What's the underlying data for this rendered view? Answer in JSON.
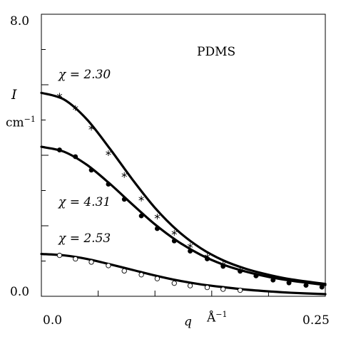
{
  "chart_data": {
    "type": "line",
    "annotation": "PDMS",
    "xlabel_symbol": "q",
    "xlabel_unit": "Å",
    "xlabel_unit_exp": "−1",
    "ylabel_symbol": "I",
    "ylabel_unit": "cm",
    "ylabel_unit_exp": "−1",
    "xlim": [
      0.0,
      0.25
    ],
    "ylim": [
      0.0,
      8.0
    ],
    "x_tick_labels": [
      "0.0",
      "0.25"
    ],
    "y_tick_labels": [
      "8.0",
      "0.0"
    ],
    "grid": false,
    "series": [
      {
        "name": "χ = 2.30",
        "marker": "star",
        "x": [
          0.016,
          0.03,
          0.044,
          0.059,
          0.073,
          0.088,
          0.102,
          0.117,
          0.131,
          0.146,
          0.16,
          0.175,
          0.189,
          0.204,
          0.218,
          0.233,
          0.247
        ],
        "points": [
          5.69,
          5.34,
          4.78,
          4.06,
          3.44,
          2.77,
          2.26,
          1.8,
          1.43,
          1.13,
          0.91,
          0.73,
          0.6,
          0.5,
          0.43,
          0.35,
          0.3
        ],
        "curve_x": [
          0.0,
          0.02,
          0.04,
          0.06,
          0.08,
          0.1,
          0.12,
          0.14,
          0.16,
          0.18,
          0.2,
          0.22,
          0.25
        ],
        "curve": [
          5.77,
          5.58,
          5.02,
          4.2,
          3.32,
          2.51,
          1.86,
          1.37,
          1.02,
          0.78,
          0.61,
          0.48,
          0.35
        ]
      },
      {
        "name": "χ = 4.31",
        "marker": "filled-circle",
        "x": [
          0.016,
          0.03,
          0.044,
          0.059,
          0.073,
          0.088,
          0.102,
          0.117,
          0.131,
          0.146,
          0.16,
          0.175,
          0.189,
          0.204,
          0.218,
          0.233,
          0.247
        ],
        "points": [
          4.15,
          3.96,
          3.58,
          3.18,
          2.75,
          2.28,
          1.92,
          1.57,
          1.28,
          1.06,
          0.85,
          0.71,
          0.58,
          0.46,
          0.38,
          0.31,
          0.26
        ],
        "curve_x": [
          0.0,
          0.02,
          0.04,
          0.06,
          0.08,
          0.1,
          0.12,
          0.14,
          0.16,
          0.18,
          0.2,
          0.22,
          0.25
        ],
        "curve": [
          4.24,
          4.1,
          3.73,
          3.2,
          2.61,
          2.04,
          1.56,
          1.18,
          0.9,
          0.7,
          0.55,
          0.44,
          0.32
        ]
      },
      {
        "name": "χ = 2.53",
        "marker": "open-circle",
        "x": [
          0.016,
          0.03,
          0.044,
          0.059,
          0.073,
          0.088,
          0.102,
          0.117,
          0.131,
          0.146,
          0.16,
          0.175
        ],
        "points": [
          1.16,
          1.06,
          0.97,
          0.87,
          0.72,
          0.61,
          0.5,
          0.37,
          0.3,
          0.25,
          0.2,
          0.17
        ],
        "curve_x": [
          0.0,
          0.02,
          0.04,
          0.06,
          0.08,
          0.1,
          0.12,
          0.14,
          0.16,
          0.18,
          0.2,
          0.22,
          0.25
        ],
        "curve": [
          1.2,
          1.16,
          1.06,
          0.91,
          0.75,
          0.59,
          0.45,
          0.34,
          0.26,
          0.19,
          0.14,
          0.1,
          0.06
        ]
      }
    ]
  }
}
